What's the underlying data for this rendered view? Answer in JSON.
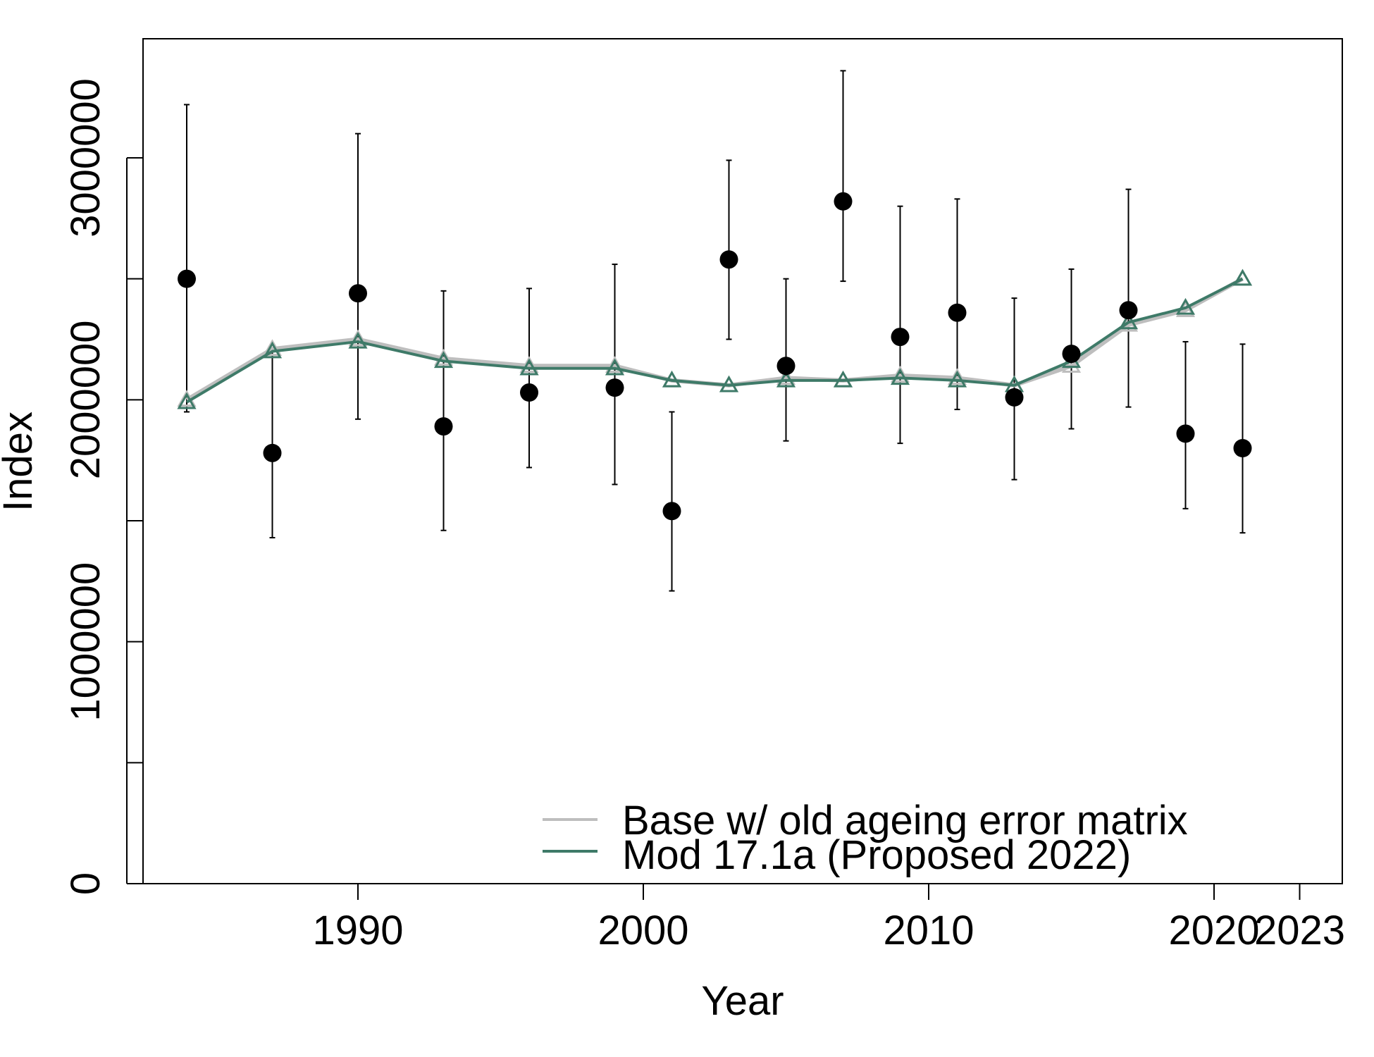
{
  "chart_data": {
    "type": "line",
    "xlabel": "Year",
    "ylabel": "Index",
    "xlim": [
      1982.5,
      1984.6
    ],
    "ylim": [
      0,
      3500000
    ],
    "x_ticks": [
      1990,
      2000,
      2010,
      2020,
      2023
    ],
    "y_ticks": [
      0,
      500000,
      1000000,
      1500000,
      2000000,
      2500000,
      3000000
    ],
    "y_tick_labels": [
      "0",
      "",
      "1000000",
      "",
      "2000000",
      "",
      "3000000"
    ],
    "years": [
      1984,
      1987,
      1990,
      1993,
      1996,
      1999,
      2001,
      2003,
      2005,
      2007,
      2009,
      2011,
      2013,
      2015,
      2017,
      2019,
      2021
    ],
    "observed": {
      "values": [
        2500000,
        1780000,
        2440000,
        1890000,
        2030000,
        2050000,
        1540000,
        2580000,
        2140000,
        2820000,
        2260000,
        2360000,
        2010000,
        2190000,
        2370000,
        1860000,
        1800000
      ],
      "lower": [
        1950000,
        1430000,
        1920000,
        1460000,
        1720000,
        1650000,
        1210000,
        2250000,
        1830000,
        2490000,
        1820000,
        1960000,
        1670000,
        1880000,
        1970000,
        1550000,
        1450000
      ],
      "upper": [
        3220000,
        2200000,
        3100000,
        2450000,
        2460000,
        2560000,
        1950000,
        2990000,
        2500000,
        3360000,
        2800000,
        2830000,
        2420000,
        2540000,
        2870000,
        2240000,
        2230000
      ]
    },
    "series": [
      {
        "name": "Base w/ old ageing error matrix",
        "color": "#bebebe",
        "values": [
          2000000,
          2210000,
          2250000,
          2170000,
          2140000,
          2140000,
          2080000,
          2060000,
          2090000,
          2080000,
          2100000,
          2090000,
          2060000,
          2140000,
          2310000,
          2370000,
          2500000
        ]
      },
      {
        "name": "Mod 17.1a (Proposed 2022)",
        "color": "#3e7a68",
        "values": [
          1990000,
          2200000,
          2240000,
          2160000,
          2130000,
          2130000,
          2080000,
          2060000,
          2080000,
          2080000,
          2090000,
          2080000,
          2060000,
          2160000,
          2320000,
          2380000,
          2500000
        ]
      }
    ],
    "legend_position": "bottom-right"
  }
}
